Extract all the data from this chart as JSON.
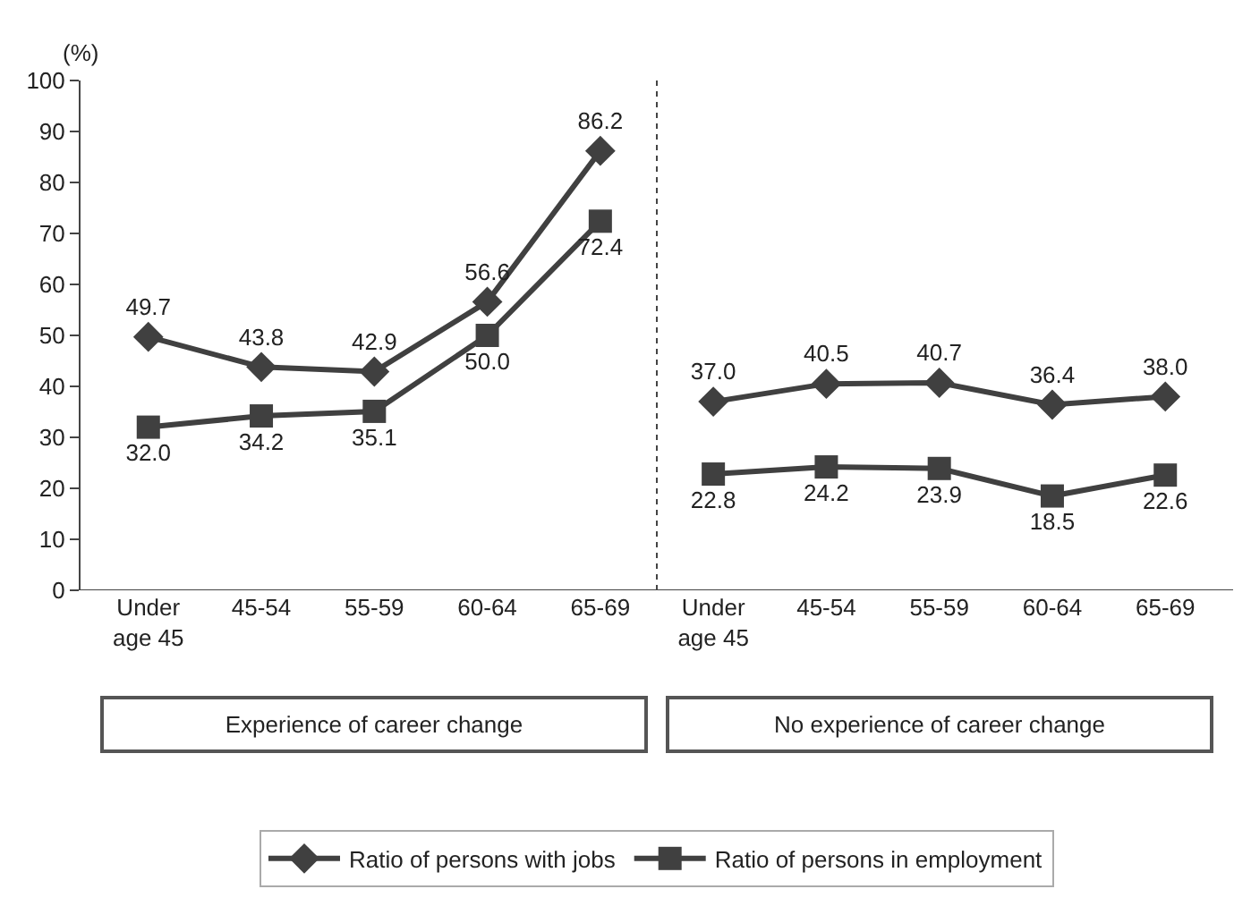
{
  "chart_data": {
    "type": "line",
    "ylabel": "(%)",
    "categories": [
      "Under\nage 45",
      "45-54",
      "55-59",
      "60-64",
      "65-69",
      "Under\nage 45",
      "45-54",
      "55-59",
      "60-64",
      "65-69"
    ],
    "series": [
      {
        "name": "Ratio of persons with jobs",
        "color": "#404040",
        "marker": "diamond",
        "values": [
          49.7,
          43.8,
          42.9,
          56.6,
          86.2,
          37.0,
          40.5,
          40.7,
          36.4,
          38.0
        ],
        "value_labels": [
          "49.7",
          "43.8",
          "42.9",
          "56.6",
          "86.2",
          "37.0",
          "40.5",
          "40.7",
          "36.4",
          "38.0"
        ]
      },
      {
        "name": "Ratio of persons in employment",
        "color": "#404040",
        "marker": "square",
        "values": [
          32.0,
          34.2,
          35.1,
          50.0,
          72.4,
          22.8,
          24.2,
          23.9,
          18.5,
          22.6
        ],
        "value_labels": [
          "32.0",
          "34.2",
          "35.1",
          "50.0",
          "72.4",
          "22.8",
          "24.2",
          "23.9",
          "18.5",
          "22.6"
        ]
      }
    ],
    "annotations": [
      "Experience of career change",
      "No experience of career change"
    ],
    "ylim": [
      0,
      100
    ],
    "yticks": [
      0,
      10,
      20,
      30,
      40,
      50,
      60,
      70,
      80,
      90,
      100
    ],
    "legend": "bottom"
  }
}
